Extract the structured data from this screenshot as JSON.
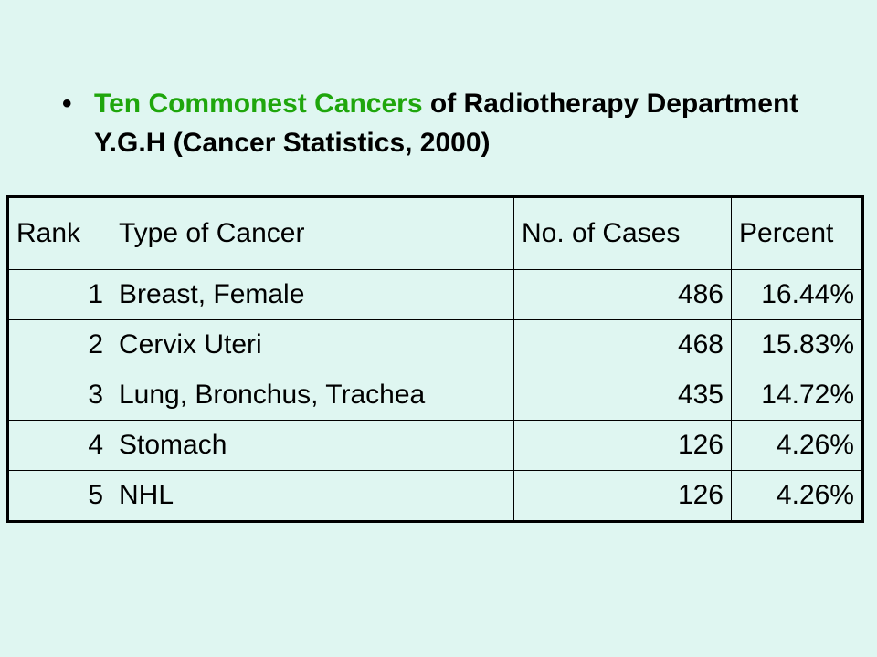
{
  "heading": {
    "bullet": "•",
    "highlight": "Ten Commonest Cancers",
    "rest": "of Radiotherapy Department Y.G.H (Cancer Statistics, 2000)"
  },
  "table": {
    "headers": [
      "Rank",
      "Type of Cancer",
      "No. of Cases",
      "Percent"
    ],
    "rows": [
      {
        "rank": "1",
        "type": "Breast, Female",
        "cases": "486",
        "percent": "16.44%"
      },
      {
        "rank": "2",
        "type": "Cervix Uteri",
        "cases": "468",
        "percent": "15.83%"
      },
      {
        "rank": "3",
        "type": "Lung, Bronchus, Trachea",
        "cases": "435",
        "percent": "14.72%"
      },
      {
        "rank": "4",
        "type": "Stomach",
        "cases": "126",
        "percent": "4.26%"
      },
      {
        "rank": "5",
        "type": "NHL",
        "cases": "126",
        "percent": "4.26%"
      }
    ]
  },
  "colors": {
    "background": "#dff6f1",
    "highlight": "#1fa60c",
    "text": "#000000"
  }
}
